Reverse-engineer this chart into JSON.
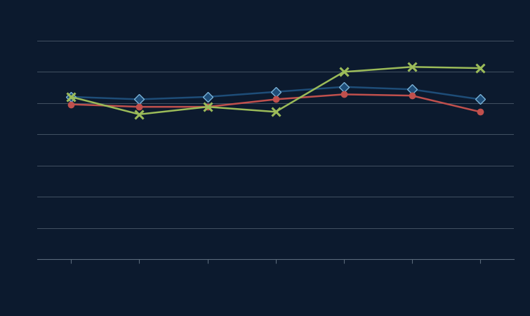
{
  "x": [
    1,
    2,
    3,
    4,
    5,
    6,
    7
  ],
  "series1": [
    6.5,
    6.4,
    6.5,
    6.7,
    6.9,
    6.8,
    6.4
  ],
  "series2": [
    6.2,
    6.1,
    6.1,
    6.4,
    6.6,
    6.55,
    5.9
  ],
  "series3": [
    6.5,
    5.8,
    6.1,
    5.9,
    7.5,
    7.7,
    7.65
  ],
  "color1": "#1e4d78",
  "color2": "#c0504d",
  "color3": "#9bbb59",
  "bg_color": "#0c1a2e",
  "grid_color": "#5a6a7a",
  "line_width": 1.8,
  "marker1": "D",
  "marker2": "o",
  "marker3": "x",
  "marker_size1": 7,
  "marker_size2": 6,
  "marker_size3": 9,
  "ylim_min": 0.0,
  "ylim_max": 10.0,
  "n_gridlines": 8,
  "legend_labels": [
    "",
    "",
    ""
  ]
}
